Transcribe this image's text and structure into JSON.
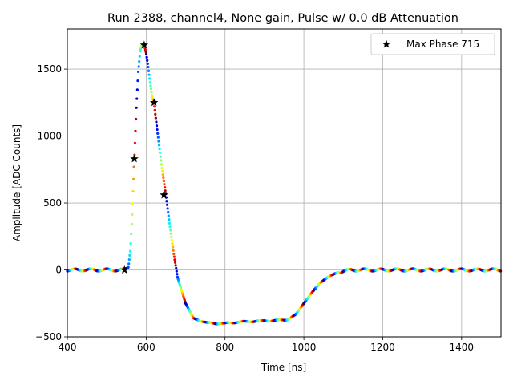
{
  "chart_data": {
    "type": "scatter",
    "title": "Run 2388, channel4, None gain, Pulse w/ 0.0 dB Attenuation",
    "xlabel": "Time [ns]",
    "ylabel": "Amplitude [ADC Counts]",
    "xlim": [
      400,
      1500
    ],
    "ylim": [
      -500,
      1800
    ],
    "xticks": [
      400,
      600,
      800,
      1000,
      1200,
      1400
    ],
    "yticks": [
      -500,
      0,
      500,
      1000,
      1500
    ],
    "xtick_labels": [
      "400",
      "600",
      "800",
      "1000",
      "1200",
      "1400"
    ],
    "ytick_labels": [
      "−500",
      "0",
      "500",
      "1000",
      "1500"
    ],
    "grid": true,
    "legend_position": "top-right",
    "colormap": "jet",
    "series": [
      {
        "kind": "pulse-scatter",
        "x": [
          400,
          450,
          500,
          530,
          545,
          555,
          560,
          565,
          570,
          575,
          580,
          585,
          590,
          595,
          600,
          605,
          610,
          615,
          620,
          625,
          630,
          640,
          650,
          660,
          670,
          680,
          700,
          720,
          740,
          760,
          780,
          800,
          830,
          860,
          900,
          930,
          960,
          980,
          1000,
          1020,
          1040,
          1060,
          1080,
          1100,
          1120,
          1150,
          1200,
          1300,
          1400,
          1500
        ],
        "y": [
          0,
          0,
          0,
          0,
          2,
          20,
          150,
          450,
          830,
          1200,
          1480,
          1640,
          1690,
          1680,
          1620,
          1520,
          1400,
          1300,
          1240,
          1120,
          1000,
          760,
          560,
          330,
          120,
          -60,
          -250,
          -360,
          -385,
          -395,
          -400,
          -400,
          -390,
          -385,
          -380,
          -378,
          -370,
          -330,
          -250,
          -170,
          -100,
          -55,
          -25,
          -8,
          0,
          0,
          0,
          0,
          0,
          0
        ]
      },
      {
        "name": "Max Phase 715",
        "kind": "stars",
        "color": "#000000",
        "x": [
          545,
          570,
          595,
          620,
          645
        ],
        "y": [
          0,
          830,
          1680,
          1250,
          560
        ]
      }
    ]
  }
}
